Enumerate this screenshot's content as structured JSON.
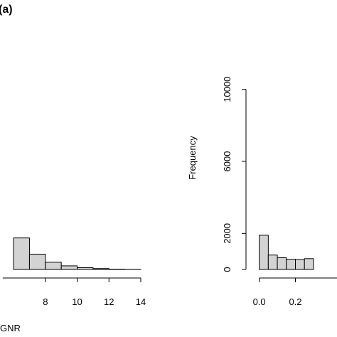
{
  "figure": {
    "panel_label": "(a)"
  },
  "chart_data": [
    {
      "type": "bar",
      "xlabel": "GNR",
      "ylabel": "",
      "bin_width": 1,
      "x_ticks": [
        8,
        10,
        12,
        14
      ],
      "x_tick_labels": [
        "8",
        "10",
        "12",
        "14"
      ],
      "bins": [
        {
          "start": 6,
          "end": 7,
          "value": 1750
        },
        {
          "start": 7,
          "end": 8,
          "value": 850
        },
        {
          "start": 8,
          "end": 9,
          "value": 400
        },
        {
          "start": 9,
          "end": 10,
          "value": 200
        },
        {
          "start": 10,
          "end": 11,
          "value": 100
        },
        {
          "start": 11,
          "end": 12,
          "value": 50
        },
        {
          "start": 12,
          "end": 13,
          "value": 15
        },
        {
          "start": 13,
          "end": 14,
          "value": 5
        }
      ],
      "xlim": [
        4.7,
        14
      ],
      "ylim": [
        0,
        12000
      ]
    },
    {
      "type": "bar",
      "xlabel": "",
      "ylabel": "Frequency",
      "bin_width": 0.05,
      "y_ticks": [
        0,
        2000,
        6000,
        10000
      ],
      "y_tick_labels": [
        "0",
        "2000",
        "6000",
        "10000"
      ],
      "x_ticks": [
        0.0,
        0.2
      ],
      "x_tick_labels": [
        "0.0",
        "0.2"
      ],
      "bins": [
        {
          "start": 0.0,
          "end": 0.05,
          "value": 1900
        },
        {
          "start": 0.05,
          "end": 0.1,
          "value": 800
        },
        {
          "start": 0.1,
          "end": 0.15,
          "value": 650
        },
        {
          "start": 0.15,
          "end": 0.2,
          "value": 570
        },
        {
          "start": 0.2,
          "end": 0.25,
          "value": 550
        },
        {
          "start": 0.25,
          "end": 0.3,
          "value": 600
        }
      ],
      "xlim": [
        -0.03,
        0.43
      ],
      "ylim": [
        0,
        12000
      ]
    }
  ]
}
